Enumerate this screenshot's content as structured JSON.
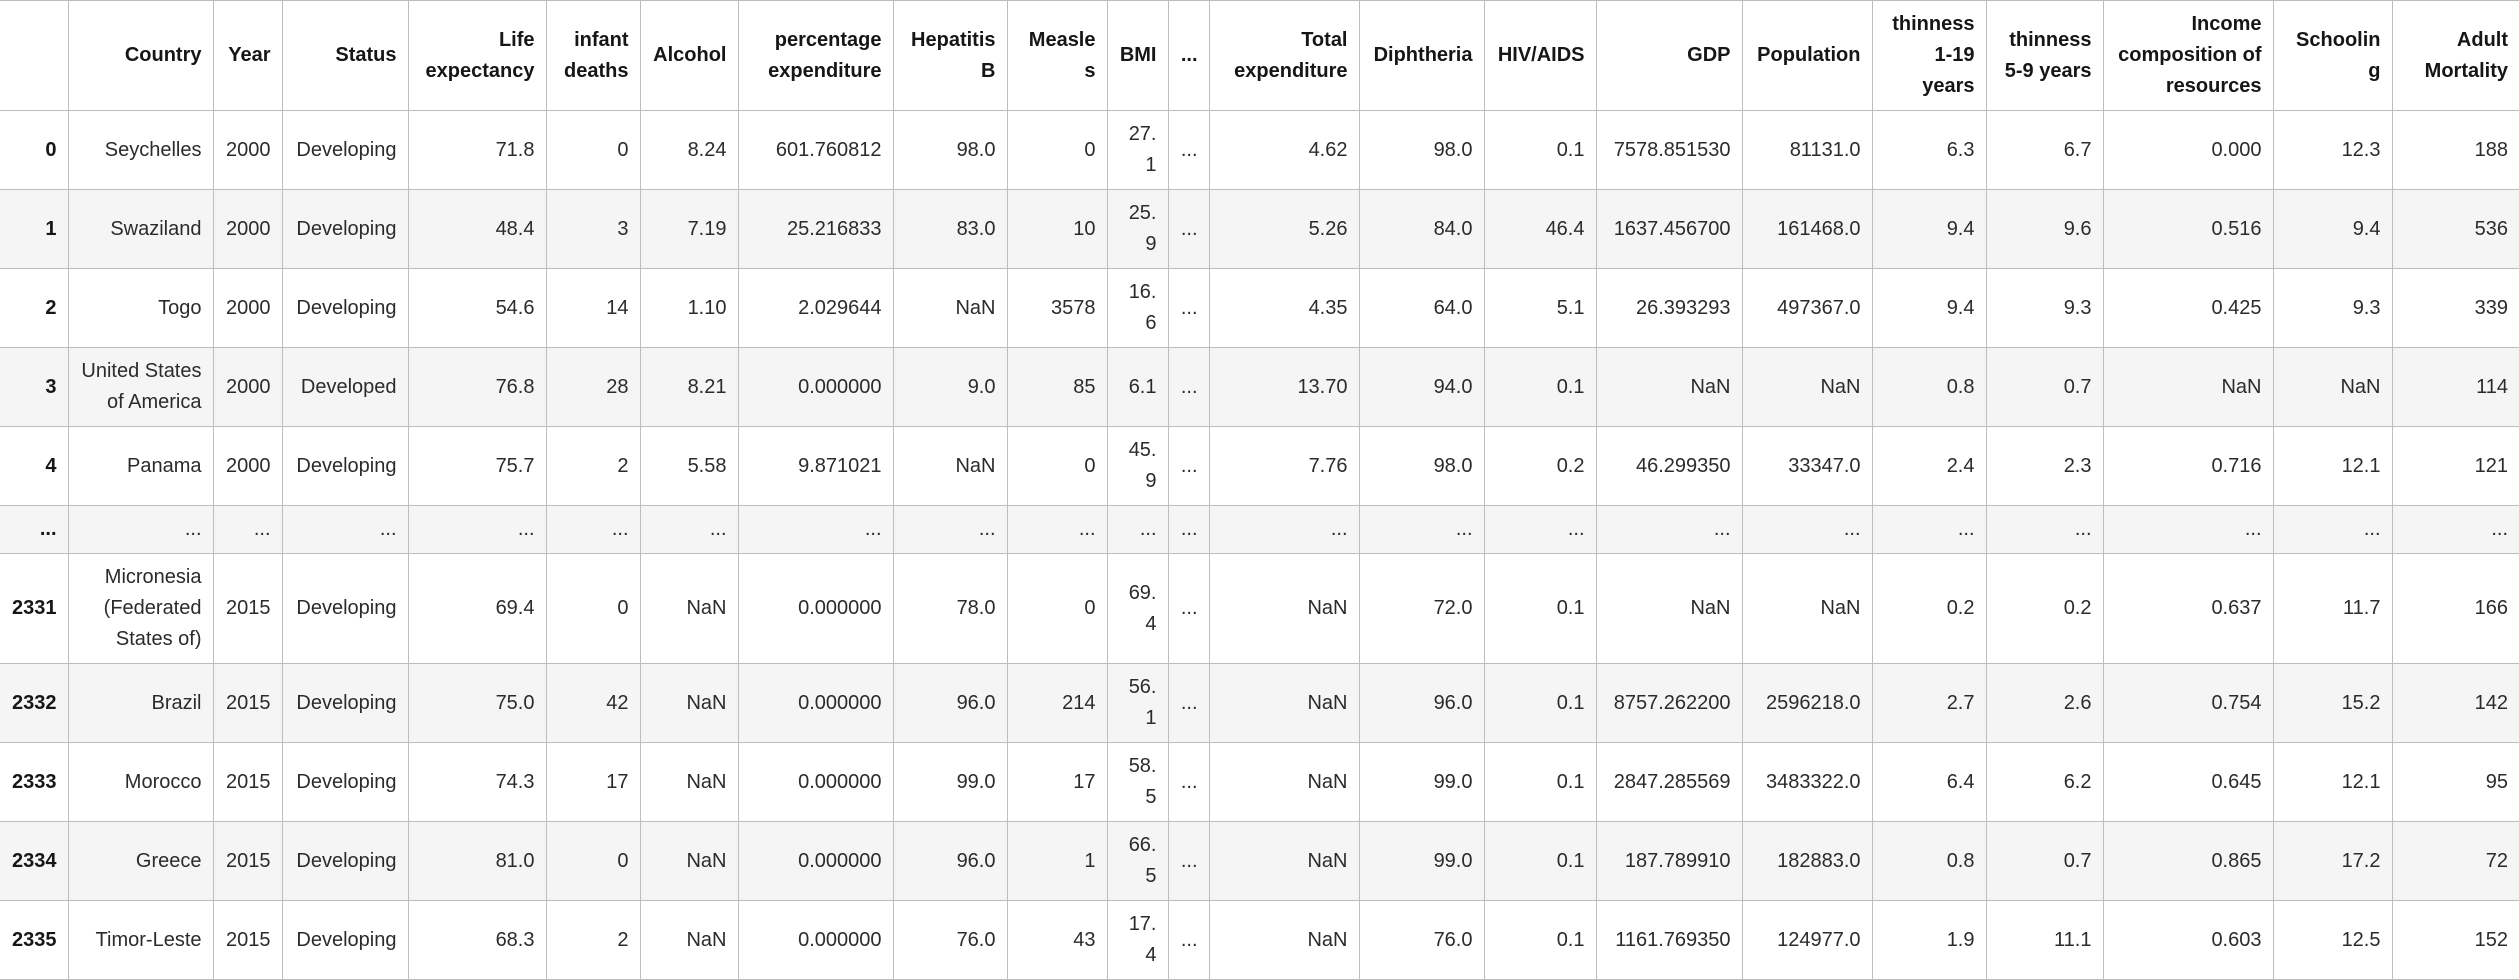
{
  "app": {
    "view": "dataframe-output",
    "description": "Pandas DataFrame preview of life expectancy dataset, truncated columns and rows"
  },
  "colors": {
    "border": "#bdbdbd",
    "row_stripe": "#f5f5f5",
    "header_text": "#161616",
    "cell_text": "#2b2b2b",
    "background": "#ffffff"
  },
  "table": {
    "columns": [
      "",
      "Country",
      "Year",
      "Status",
      "Life expectancy",
      "infant deaths",
      "Alcohol",
      "percentage expenditure",
      "Hepatitis B",
      "Measles",
      "BMI",
      "...",
      "Total expenditure",
      "Diphtheria",
      "HIV/AIDS",
      "GDP",
      "Population",
      "thinness 1-19 years",
      "thinness 5-9 years",
      "Income composition of resources",
      "Schooling",
      "Adult Mortality"
    ],
    "rows": [
      {
        "index": "0",
        "cells": [
          "Seychelles",
          "2000",
          "Developing",
          "71.8",
          "0",
          "8.24",
          "601.760812",
          "98.0",
          "0",
          "27.1",
          "...",
          "4.62",
          "98.0",
          "0.1",
          "7578.851530",
          "81131.0",
          "6.3",
          "6.7",
          "0.000",
          "12.3",
          "188"
        ]
      },
      {
        "index": "1",
        "cells": [
          "Swaziland",
          "2000",
          "Developing",
          "48.4",
          "3",
          "7.19",
          "25.216833",
          "83.0",
          "10",
          "25.9",
          "...",
          "5.26",
          "84.0",
          "46.4",
          "1637.456700",
          "161468.0",
          "9.4",
          "9.6",
          "0.516",
          "9.4",
          "536"
        ]
      },
      {
        "index": "2",
        "cells": [
          "Togo",
          "2000",
          "Developing",
          "54.6",
          "14",
          "1.10",
          "2.029644",
          "NaN",
          "3578",
          "16.6",
          "...",
          "4.35",
          "64.0",
          "5.1",
          "26.393293",
          "497367.0",
          "9.4",
          "9.3",
          "0.425",
          "9.3",
          "339"
        ]
      },
      {
        "index": "3",
        "cells": [
          "United States of America",
          "2000",
          "Developed",
          "76.8",
          "28",
          "8.21",
          "0.000000",
          "9.0",
          "85",
          "6.1",
          "...",
          "13.70",
          "94.0",
          "0.1",
          "NaN",
          "NaN",
          "0.8",
          "0.7",
          "NaN",
          "NaN",
          "114"
        ]
      },
      {
        "index": "4",
        "cells": [
          "Panama",
          "2000",
          "Developing",
          "75.7",
          "2",
          "5.58",
          "9.871021",
          "NaN",
          "0",
          "45.9",
          "...",
          "7.76",
          "98.0",
          "0.2",
          "46.299350",
          "33347.0",
          "2.4",
          "2.3",
          "0.716",
          "12.1",
          "121"
        ]
      },
      {
        "index": "...",
        "cells": [
          "...",
          "...",
          "...",
          "...",
          "...",
          "...",
          "...",
          "...",
          "...",
          "...",
          "...",
          "...",
          "...",
          "...",
          "...",
          "...",
          "...",
          "...",
          "...",
          "...",
          "..."
        ]
      },
      {
        "index": "2331",
        "cells": [
          "Micronesia (Federated States of)",
          "2015",
          "Developing",
          "69.4",
          "0",
          "NaN",
          "0.000000",
          "78.0",
          "0",
          "69.4",
          "...",
          "NaN",
          "72.0",
          "0.1",
          "NaN",
          "NaN",
          "0.2",
          "0.2",
          "0.637",
          "11.7",
          "166"
        ]
      },
      {
        "index": "2332",
        "cells": [
          "Brazil",
          "2015",
          "Developing",
          "75.0",
          "42",
          "NaN",
          "0.000000",
          "96.0",
          "214",
          "56.1",
          "...",
          "NaN",
          "96.0",
          "0.1",
          "8757.262200",
          "2596218.0",
          "2.7",
          "2.6",
          "0.754",
          "15.2",
          "142"
        ]
      },
      {
        "index": "2333",
        "cells": [
          "Morocco",
          "2015",
          "Developing",
          "74.3",
          "17",
          "NaN",
          "0.000000",
          "99.0",
          "17",
          "58.5",
          "...",
          "NaN",
          "99.0",
          "0.1",
          "2847.285569",
          "3483322.0",
          "6.4",
          "6.2",
          "0.645",
          "12.1",
          "95"
        ]
      },
      {
        "index": "2334",
        "cells": [
          "Greece",
          "2015",
          "Developing",
          "81.0",
          "0",
          "NaN",
          "0.000000",
          "96.0",
          "1",
          "66.5",
          "...",
          "NaN",
          "99.0",
          "0.1",
          "187.789910",
          "182883.0",
          "0.8",
          "0.7",
          "0.865",
          "17.2",
          "72"
        ]
      },
      {
        "index": "2335",
        "cells": [
          "Timor-Leste",
          "2015",
          "Developing",
          "68.3",
          "2",
          "NaN",
          "0.000000",
          "76.0",
          "43",
          "17.4",
          "...",
          "NaN",
          "76.0",
          "0.1",
          "1161.769350",
          "124977.0",
          "1.9",
          "11.1",
          "0.603",
          "12.5",
          "152"
        ]
      }
    ]
  }
}
